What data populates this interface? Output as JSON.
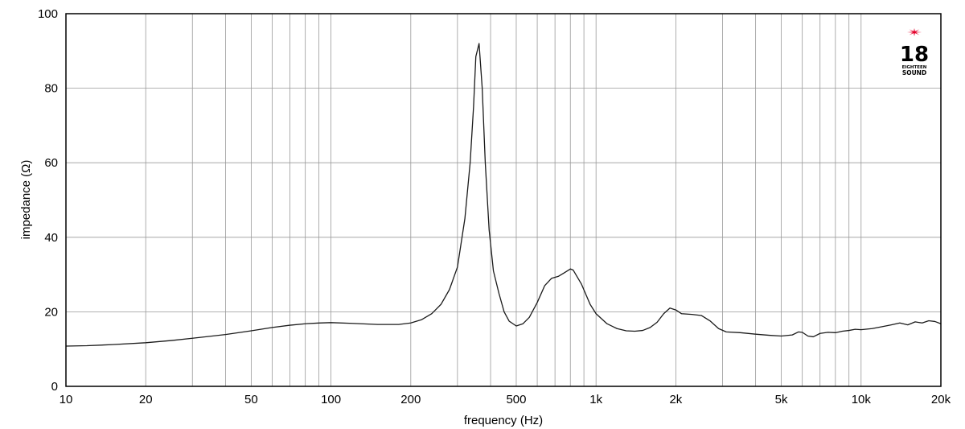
{
  "chart_data": {
    "type": "line",
    "xlabel": "frequency (Hz)",
    "ylabel": "impedance (Ω)",
    "x_scale": "log",
    "xlim": [
      10,
      20000
    ],
    "ylim": [
      0,
      100
    ],
    "grid": true,
    "x_ticks": [
      {
        "value": 10,
        "label": "10"
      },
      {
        "value": 20,
        "label": "20"
      },
      {
        "value": 50,
        "label": "50"
      },
      {
        "value": 100,
        "label": "100"
      },
      {
        "value": 200,
        "label": "200"
      },
      {
        "value": 500,
        "label": "500"
      },
      {
        "value": 1000,
        "label": "1k"
      },
      {
        "value": 2000,
        "label": "2k"
      },
      {
        "value": 5000,
        "label": "5k"
      },
      {
        "value": 10000,
        "label": "10k"
      },
      {
        "value": 20000,
        "label": "20k"
      }
    ],
    "y_ticks": [
      {
        "value": 0,
        "label": "0"
      },
      {
        "value": 20,
        "label": "20"
      },
      {
        "value": 40,
        "label": "40"
      },
      {
        "value": 60,
        "label": "60"
      },
      {
        "value": 80,
        "label": "80"
      },
      {
        "value": 100,
        "label": "100"
      }
    ],
    "minor_x_gridlines": [
      30,
      40,
      60,
      70,
      80,
      90,
      300,
      400,
      600,
      700,
      800,
      900,
      3000,
      4000,
      6000,
      7000,
      8000,
      9000
    ],
    "series": [
      {
        "color": "#1a1a1a",
        "points": [
          [
            10,
            10.8
          ],
          [
            12,
            10.9
          ],
          [
            15,
            11.2
          ],
          [
            20,
            11.7
          ],
          [
            25,
            12.3
          ],
          [
            30,
            12.9
          ],
          [
            40,
            13.9
          ],
          [
            50,
            14.9
          ],
          [
            60,
            15.8
          ],
          [
            70,
            16.4
          ],
          [
            80,
            16.8
          ],
          [
            90,
            17.0
          ],
          [
            100,
            17.1
          ],
          [
            120,
            16.9
          ],
          [
            150,
            16.6
          ],
          [
            180,
            16.6
          ],
          [
            200,
            17.0
          ],
          [
            220,
            17.9
          ],
          [
            240,
            19.5
          ],
          [
            260,
            22.0
          ],
          [
            280,
            26.0
          ],
          [
            300,
            32.0
          ],
          [
            320,
            45.0
          ],
          [
            335,
            60.0
          ],
          [
            345,
            75.0
          ],
          [
            352,
            88.5
          ],
          [
            362,
            92.0
          ],
          [
            372,
            80.0
          ],
          [
            382,
            60.0
          ],
          [
            395,
            42.0
          ],
          [
            410,
            31.0
          ],
          [
            430,
            25.0
          ],
          [
            450,
            20.0
          ],
          [
            470,
            17.5
          ],
          [
            500,
            16.2
          ],
          [
            530,
            16.8
          ],
          [
            560,
            18.5
          ],
          [
            600,
            22.5
          ],
          [
            640,
            27.0
          ],
          [
            680,
            29.0
          ],
          [
            720,
            29.5
          ],
          [
            760,
            30.5
          ],
          [
            800,
            31.5
          ],
          [
            820,
            31.2
          ],
          [
            880,
            27.5
          ],
          [
            950,
            22.0
          ],
          [
            1000,
            19.5
          ],
          [
            1100,
            16.8
          ],
          [
            1200,
            15.5
          ],
          [
            1300,
            14.9
          ],
          [
            1400,
            14.8
          ],
          [
            1500,
            15.0
          ],
          [
            1600,
            15.8
          ],
          [
            1700,
            17.2
          ],
          [
            1800,
            19.5
          ],
          [
            1900,
            21.0
          ],
          [
            2000,
            20.5
          ],
          [
            2100,
            19.5
          ],
          [
            2300,
            19.3
          ],
          [
            2500,
            19.0
          ],
          [
            2700,
            17.5
          ],
          [
            2900,
            15.5
          ],
          [
            3100,
            14.6
          ],
          [
            3500,
            14.4
          ],
          [
            4000,
            14.0
          ],
          [
            4500,
            13.7
          ],
          [
            5000,
            13.5
          ],
          [
            5500,
            13.8
          ],
          [
            5800,
            14.6
          ],
          [
            6000,
            14.5
          ],
          [
            6300,
            13.5
          ],
          [
            6600,
            13.3
          ],
          [
            7000,
            14.2
          ],
          [
            7500,
            14.5
          ],
          [
            8000,
            14.4
          ],
          [
            8500,
            14.8
          ],
          [
            9000,
            15.0
          ],
          [
            9500,
            15.3
          ],
          [
            10000,
            15.2
          ],
          [
            11000,
            15.5
          ],
          [
            12000,
            16.0
          ],
          [
            13000,
            16.5
          ],
          [
            14000,
            17.0
          ],
          [
            15000,
            16.5
          ],
          [
            16000,
            17.3
          ],
          [
            17000,
            17.0
          ],
          [
            18000,
            17.6
          ],
          [
            19000,
            17.4
          ],
          [
            20000,
            16.8
          ]
        ]
      }
    ]
  },
  "logo": {
    "number": "18",
    "line1": "EIGHTEEN",
    "line2": "SOUND",
    "star_color": "#e4002b"
  }
}
